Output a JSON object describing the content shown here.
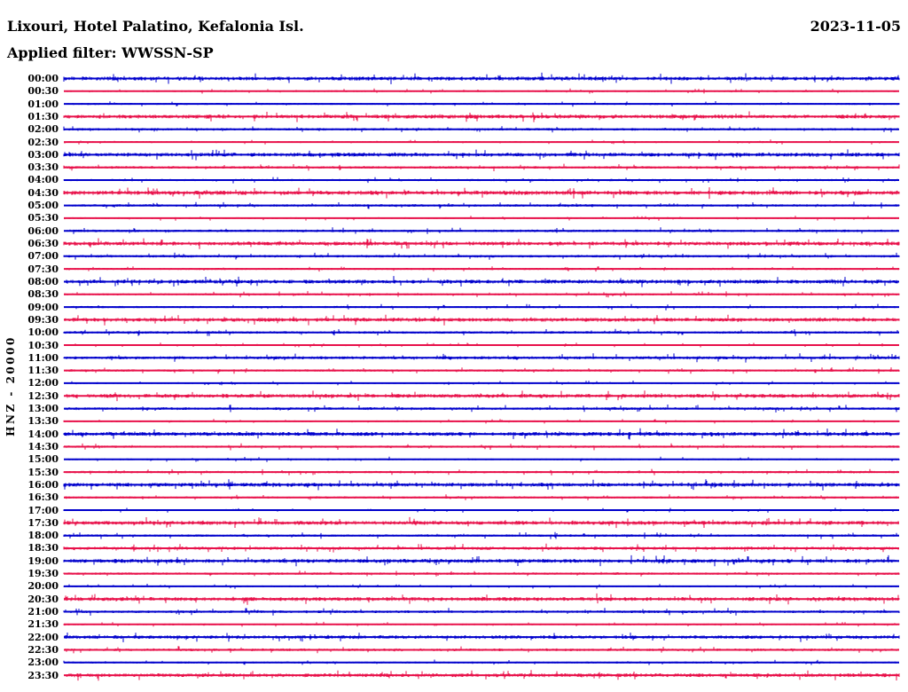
{
  "page": {
    "title": "Lixouri, Hotel Palatino, Kefalonia Isl.",
    "date": "2023-11-05",
    "filter_label": "Applied filter: WWSSN-SP",
    "filter": "WWSSN-SP",
    "station_scale_label": "HNZ - 20000",
    "channel": "HNZ",
    "scale": "20000"
  },
  "chart_data": {
    "type": "line",
    "subtype": "helicorder-seismogram",
    "title": "Lixouri, Hotel Palatino, Kefalonia Isl.",
    "subtitle": "Applied filter: WWSSN-SP",
    "date": "2023-11-05",
    "ylabel": "HNZ - 20000",
    "xlabel": "",
    "minutes_per_row": 30,
    "grid": false,
    "legend_position": "none",
    "note": "48 half-hour trace rows of continuous background microseismic noise; no large events visible; rows alternate blue/red; amplitude is relative noise band height in px",
    "colors": {
      "blue": "#0000cc",
      "red": "#e8114a",
      "text": "#000000",
      "background": "#ffffff"
    },
    "rows": [
      {
        "label": "00:00",
        "color": "blue",
        "noise_amp": 2.0
      },
      {
        "label": "00:30",
        "color": "red",
        "noise_amp": 0.9
      },
      {
        "label": "01:00",
        "color": "blue",
        "noise_amp": 1.0
      },
      {
        "label": "01:30",
        "color": "red",
        "noise_amp": 2.0
      },
      {
        "label": "02:00",
        "color": "blue",
        "noise_amp": 1.3
      },
      {
        "label": "02:30",
        "color": "red",
        "noise_amp": 0.9
      },
      {
        "label": "03:00",
        "color": "blue",
        "noise_amp": 2.0
      },
      {
        "label": "03:30",
        "color": "red",
        "noise_amp": 1.3
      },
      {
        "label": "04:00",
        "color": "blue",
        "noise_amp": 1.1
      },
      {
        "label": "04:30",
        "color": "red",
        "noise_amp": 2.2
      },
      {
        "label": "05:00",
        "color": "blue",
        "noise_amp": 1.3
      },
      {
        "label": "05:30",
        "color": "red",
        "noise_amp": 0.9
      },
      {
        "label": "06:00",
        "color": "blue",
        "noise_amp": 1.3
      },
      {
        "label": "06:30",
        "color": "red",
        "noise_amp": 2.0
      },
      {
        "label": "07:00",
        "color": "blue",
        "noise_amp": 1.3
      },
      {
        "label": "07:30",
        "color": "red",
        "noise_amp": 1.1
      },
      {
        "label": "08:00",
        "color": "blue",
        "noise_amp": 2.0
      },
      {
        "label": "08:30",
        "color": "red",
        "noise_amp": 1.1
      },
      {
        "label": "09:00",
        "color": "blue",
        "noise_amp": 1.1
      },
      {
        "label": "09:30",
        "color": "red",
        "noise_amp": 2.0
      },
      {
        "label": "10:00",
        "color": "blue",
        "noise_amp": 1.3
      },
      {
        "label": "10:30",
        "color": "red",
        "noise_amp": 0.9
      },
      {
        "label": "11:00",
        "color": "blue",
        "noise_amp": 1.6
      },
      {
        "label": "11:30",
        "color": "red",
        "noise_amp": 1.2
      },
      {
        "label": "12:00",
        "color": "blue",
        "noise_amp": 0.9
      },
      {
        "label": "12:30",
        "color": "red",
        "noise_amp": 2.0
      },
      {
        "label": "13:00",
        "color": "blue",
        "noise_amp": 1.4
      },
      {
        "label": "13:30",
        "color": "red",
        "noise_amp": 0.9
      },
      {
        "label": "14:00",
        "color": "blue",
        "noise_amp": 2.0
      },
      {
        "label": "14:30",
        "color": "red",
        "noise_amp": 1.2
      },
      {
        "label": "15:00",
        "color": "blue",
        "noise_amp": 0.9
      },
      {
        "label": "15:30",
        "color": "red",
        "noise_amp": 1.2
      },
      {
        "label": "16:00",
        "color": "blue",
        "noise_amp": 2.0
      },
      {
        "label": "16:30",
        "color": "red",
        "noise_amp": 1.1
      },
      {
        "label": "17:00",
        "color": "blue",
        "noise_amp": 0.9
      },
      {
        "label": "17:30",
        "color": "red",
        "noise_amp": 2.0
      },
      {
        "label": "18:00",
        "color": "blue",
        "noise_amp": 1.2
      },
      {
        "label": "18:30",
        "color": "red",
        "noise_amp": 1.6
      },
      {
        "label": "19:00",
        "color": "blue",
        "noise_amp": 2.0
      },
      {
        "label": "19:30",
        "color": "red",
        "noise_amp": 1.2
      },
      {
        "label": "20:00",
        "color": "blue",
        "noise_amp": 0.9
      },
      {
        "label": "20:30",
        "color": "red",
        "noise_amp": 2.0
      },
      {
        "label": "21:00",
        "color": "blue",
        "noise_amp": 1.4
      },
      {
        "label": "21:30",
        "color": "red",
        "noise_amp": 0.9
      },
      {
        "label": "22:00",
        "color": "blue",
        "noise_amp": 1.8
      },
      {
        "label": "22:30",
        "color": "red",
        "noise_amp": 1.4
      },
      {
        "label": "23:00",
        "color": "blue",
        "noise_amp": 1.0
      },
      {
        "label": "23:30",
        "color": "red",
        "noise_amp": 1.9
      }
    ]
  }
}
